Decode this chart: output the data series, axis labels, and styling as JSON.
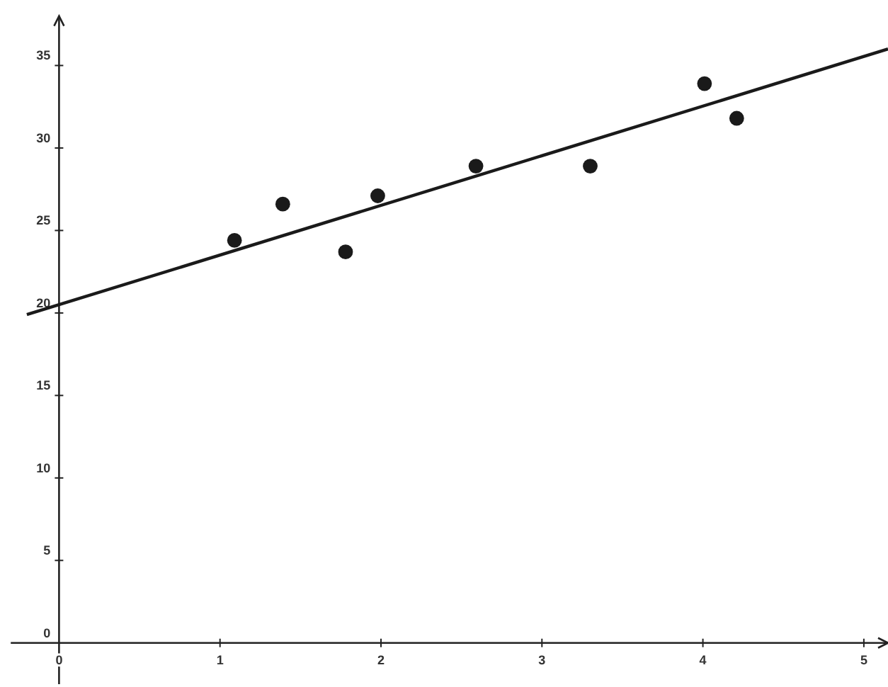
{
  "chart_data": {
    "type": "scatter",
    "xlim": [
      -0.3,
      5.15
    ],
    "ylim": [
      -2.5,
      38
    ],
    "xticks": [
      0,
      1,
      2,
      3,
      4,
      5
    ],
    "yticks": [
      0,
      5,
      10,
      15,
      20,
      25,
      30,
      35
    ],
    "grid": false,
    "marker": "circle",
    "series": [
      {
        "color": "#1a1a1a",
        "x": [
          1.09,
          1.39,
          1.78,
          1.98,
          2.59,
          3.3,
          4.01,
          4.21
        ],
        "values": [
          24.4,
          26.6,
          23.7,
          27.1,
          28.9,
          28.9,
          33.9,
          31.8
        ]
      },
      {
        "type": "line",
        "color": "#1a1a1a",
        "marker": "none",
        "x": [
          -0.2,
          5.15
        ],
        "values": [
          19.9,
          36.0
        ]
      }
    ]
  }
}
